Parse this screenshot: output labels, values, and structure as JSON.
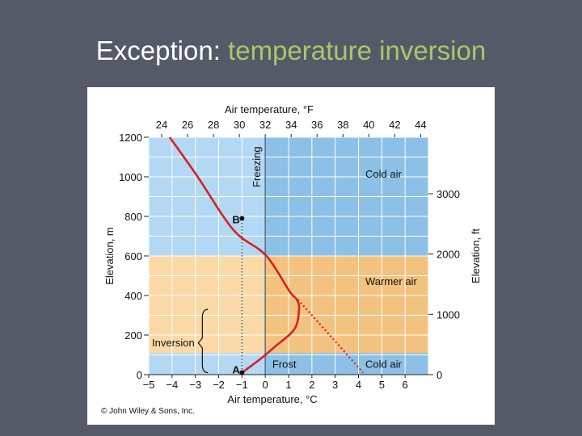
{
  "slide": {
    "title_plain": "Exception:",
    "title_accent": "temperature inversion"
  },
  "colors": {
    "background": "#555a68",
    "title_accent": "#a8c86a",
    "cold_air": "#8cc0e6",
    "warmer_air": "#f4c27f",
    "profile_line": "#d42222",
    "freezing_line": "#5a6f86"
  },
  "copyright": "© John Wiley & Sons, Inc.",
  "chart_data": {
    "type": "line",
    "xlabel_bottom": "Air temperature, °C",
    "xlabel_top": "Air temperature, °F",
    "ylabel_left": "Elevation, m",
    "ylabel_right": "Elevation, ft",
    "xlim": [
      -5,
      7
    ],
    "ylim": [
      0,
      1200
    ],
    "x_ticks_c": [
      "−5",
      "−4",
      "−3",
      "−2",
      "−1",
      "0",
      "1",
      "2",
      "3",
      "4",
      "5",
      "6"
    ],
    "x_ticks_f": [
      "24",
      "26",
      "28",
      "30",
      "32",
      "34",
      "36",
      "38",
      "40",
      "42",
      "44"
    ],
    "y_ticks_m": [
      "0",
      "200",
      "400",
      "600",
      "800",
      "1000",
      "1200"
    ],
    "y_ticks_ft": [
      "0",
      "1000",
      "2000",
      "3000"
    ],
    "zones": [
      {
        "label": "Cold air",
        "from_m": 600,
        "to_m": 1200
      },
      {
        "label": "Warmer air",
        "from_m": 110,
        "to_m": 600
      },
      {
        "label": "Cold air",
        "from_m": 0,
        "to_m": 110
      }
    ],
    "freezing_line": {
      "label": "Freezing",
      "x_c": 0
    },
    "profile": [
      {
        "x": -4.1,
        "y": 1200
      },
      {
        "x": -2.9,
        "y": 1000
      },
      {
        "x": -1.8,
        "y": 800
      },
      {
        "x": -1.1,
        "y": 700
      },
      {
        "x": 0.05,
        "y": 600
      },
      {
        "x": 1.05,
        "y": 420
      },
      {
        "x": 1.35,
        "y": 380
      },
      {
        "x": 1.45,
        "y": 330
      },
      {
        "x": 1.25,
        "y": 230
      },
      {
        "x": 0.4,
        "y": 140
      },
      {
        "x": -0.2,
        "y": 80
      },
      {
        "x": -1.0,
        "y": 10
      }
    ],
    "extrapolation": [
      {
        "x": 1.4,
        "y": 380
      },
      {
        "x": 4.2,
        "y": 10
      }
    ],
    "points": [
      {
        "label": "A",
        "x": -1.0,
        "y": 10
      },
      {
        "label": "B",
        "x": -1.0,
        "y": 790
      }
    ],
    "annotations": {
      "inversion": "Inversion",
      "frost": "Frost"
    }
  }
}
